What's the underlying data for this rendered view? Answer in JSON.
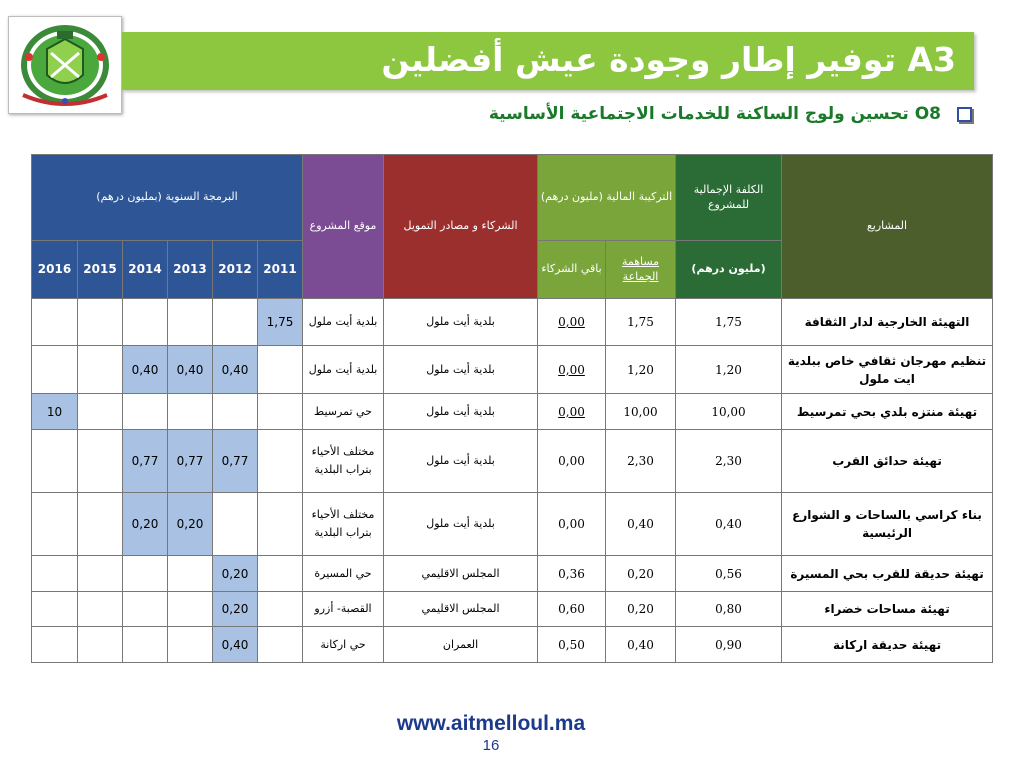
{
  "header": {
    "title": "A3 توفير إطار وجودة عيش أفضلين",
    "subtitle": "O8 تحسين ولوج الساكنة للخدمات الاجتماعية الأساسية"
  },
  "table": {
    "headers": {
      "projects": "المشاريع",
      "total_cost": "الكلفة الإجمالية للمشروع",
      "total_cost_unit": "(مليون درهم)",
      "financing": "التركيبة المالية (مليون درهم)",
      "commune_share": "مساهمة الجماعة",
      "partners_rest": "باقي الشركاء",
      "partners_sources": "الشركاء و مصادر التمويل",
      "site": "موقع المشروع",
      "annual_programming": "البرمجة السنوية (بمليون درهم)",
      "years": [
        "2011",
        "2012",
        "2013",
        "2014",
        "2015",
        "2016"
      ]
    },
    "rows": [
      {
        "project": "التهيئة الخارجية لدار الثقافة",
        "cost": "1,75",
        "commune": "1,75",
        "partners": "0,00",
        "source": "بلدية أيت ملول",
        "site": "بلدية أيت ملول",
        "years": [
          "1,75",
          "",
          "",
          "",
          "",
          ""
        ]
      },
      {
        "project": "تنظيم مهرجان ثقافي خاص ببلدية ايت ملول",
        "cost": "1,20",
        "commune": "1,20",
        "partners": "0,00",
        "source": "بلدية أيت ملول",
        "site": "بلدية أيت ملول",
        "years": [
          "",
          "0,40",
          "0,40",
          "0,40",
          "",
          ""
        ]
      },
      {
        "project": "تهيئة منتزه بلدي بحي تمرسيط",
        "cost": "10,00",
        "commune": "10,00",
        "partners": "0,00",
        "source": "بلدية أيت ملول",
        "site": "حي تمرسيط",
        "years": [
          "",
          "",
          "",
          "",
          "",
          "10"
        ]
      },
      {
        "project": "تهيئة حدائق القرب",
        "cost": "2,30",
        "commune": "2,30",
        "partners": "0,00",
        "source": "بلدية أيت ملول",
        "site": "مختلف الأحياء بتراب البلدية",
        "years": [
          "",
          "0,77",
          "0,77",
          "0,77",
          "",
          ""
        ]
      },
      {
        "project": "بناء كراسي بالساحات و الشوارع الرئيسية",
        "cost": "0,40",
        "commune": "0,40",
        "partners": "0,00",
        "source": "بلدية أيت ملول",
        "site": "مختلف الأحياء بتراب البلدية",
        "years": [
          "",
          "",
          "0,20",
          "0,20",
          "",
          ""
        ]
      },
      {
        "project": "تهيئة حديقة للقرب بحي المسيرة",
        "cost": "0,56",
        "commune": "0,20",
        "partners": "0,36",
        "source": "المجلس الاقليمي",
        "site": "حي المسيرة",
        "years": [
          "",
          "0,20",
          "",
          "",
          "",
          ""
        ]
      },
      {
        "project": "تهيئة مساحات خضراء",
        "cost": "0,80",
        "commune": "0,20",
        "partners": "0,60",
        "source": "المجلس الاقليمي",
        "site": "القصبة- أزرو",
        "years": [
          "",
          "0,20",
          "",
          "",
          "",
          ""
        ]
      },
      {
        "project": "تهيئة حديقة اركانة",
        "cost": "0,90",
        "commune": "0,40",
        "partners": "0,50",
        "source": "العمران",
        "site": "حي اركانة",
        "years": [
          "",
          "0,40",
          "",
          "",
          "",
          ""
        ]
      }
    ]
  },
  "footer": {
    "url": "www.aitmelloul.ma",
    "page": "16"
  },
  "colors": {
    "title_bar": "#8dc63f",
    "programming_header": "#2e5596",
    "highlight_cell": "#a9c1e3"
  }
}
